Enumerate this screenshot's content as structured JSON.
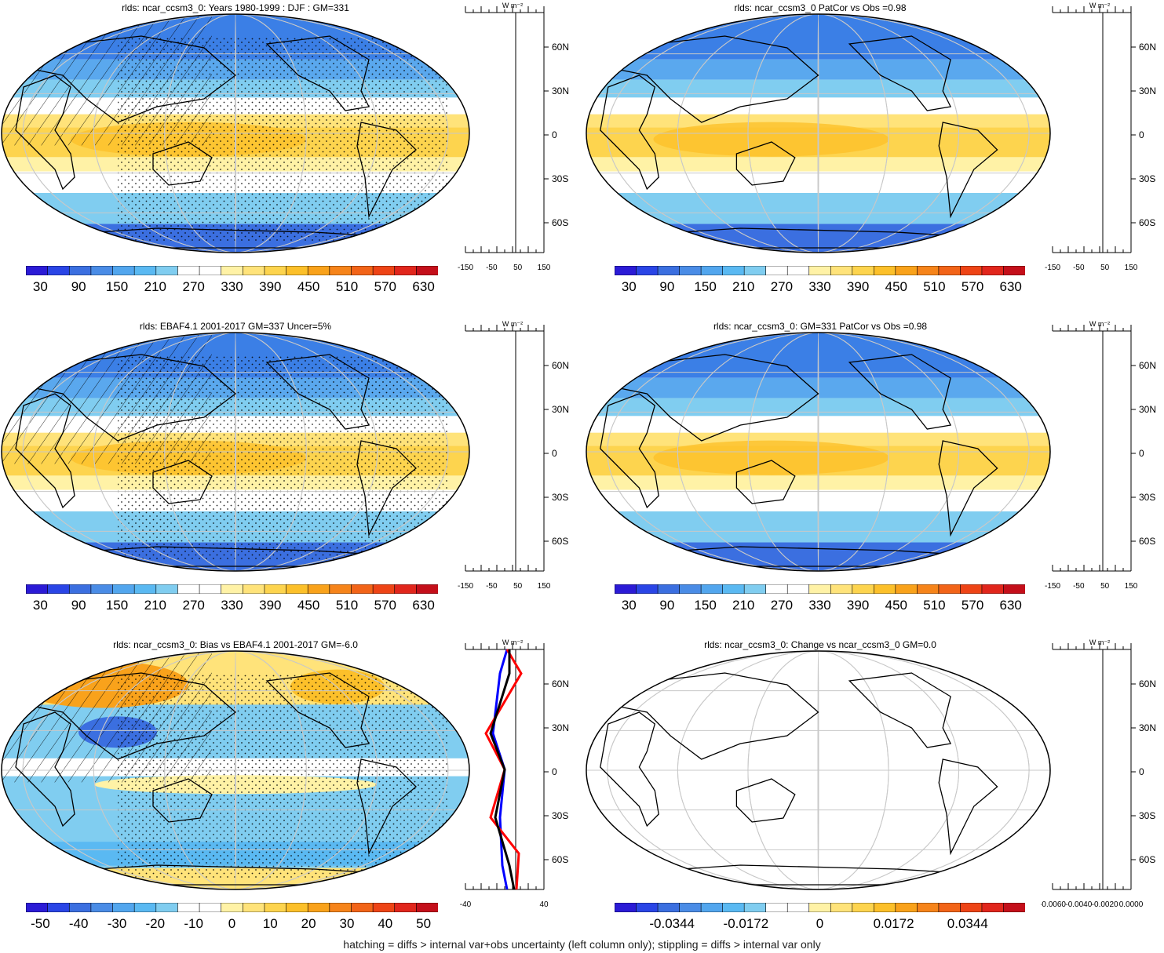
{
  "panels": [
    {
      "id": "p1",
      "title": "rlds: ncar_ccsm3_0: Years 1980-1999 : DJF : GM=331",
      "field": "full",
      "hatch": true,
      "stipple": true,
      "cbar_labels": [
        "30",
        "90",
        "150",
        "210",
        "270",
        "330",
        "390",
        "450",
        "510",
        "570",
        "630"
      ],
      "zonal_ticks": [
        "-150",
        "-50",
        "50",
        "150"
      ],
      "zonal_lines": []
    },
    {
      "id": "p2",
      "title": "rlds: ncar_ccsm3_0 PatCor vs Obs =0.98",
      "field": "full",
      "hatch": false,
      "stipple": false,
      "cbar_labels": [
        "30",
        "90",
        "150",
        "210",
        "270",
        "330",
        "390",
        "450",
        "510",
        "570",
        "630"
      ],
      "zonal_ticks": [
        "-150",
        "-50",
        "50",
        "150"
      ],
      "zonal_lines": []
    },
    {
      "id": "p3",
      "title": "rlds: EBAF4.1 2001-2017 GM=337 Uncer=5%",
      "field": "full",
      "hatch": true,
      "stipple": true,
      "cbar_labels": [
        "30",
        "90",
        "150",
        "210",
        "270",
        "330",
        "390",
        "450",
        "510",
        "570",
        "630"
      ],
      "zonal_ticks": [
        "-150",
        "-50",
        "50",
        "150"
      ],
      "zonal_lines": []
    },
    {
      "id": "p4",
      "title": "rlds: ncar_ccsm3_0: GM=331 PatCor vs Obs =0.98",
      "field": "full",
      "hatch": false,
      "stipple": false,
      "cbar_labels": [
        "30",
        "90",
        "150",
        "210",
        "270",
        "330",
        "390",
        "450",
        "510",
        "570",
        "630"
      ],
      "zonal_ticks": [
        "-150",
        "-50",
        "50",
        "150"
      ],
      "zonal_lines": []
    },
    {
      "id": "p5",
      "title": "rlds: ncar_ccsm3_0: Bias vs EBAF4.1 2001-2017 GM=-6.0",
      "field": "bias",
      "hatch": true,
      "stipple": true,
      "cbar_labels": [
        "-50",
        "-40",
        "-30",
        "-20",
        "-10",
        "0",
        "10",
        "20",
        "30",
        "40",
        "50"
      ],
      "zonal_ticks": [
        "-40",
        "40"
      ],
      "zonal_lines": [
        "#0000ff",
        "#ff0000",
        "#000000"
      ]
    },
    {
      "id": "p6",
      "title": "rlds: ncar_ccsm3_0: Change vs ncar_ccsm3_0 GM=0.0",
      "field": "zero",
      "hatch": false,
      "stipple": false,
      "cbar_labels": [
        "-0.0344",
        "-0.0172",
        "0",
        "0.0172",
        "0.0344"
      ],
      "zonal_ticks": [
        "-0.0060",
        "-0.0040",
        "-0.0020",
        "0.0000"
      ],
      "zonal_lines": []
    }
  ],
  "zonal_unit": "W m⁻²",
  "lat_labels": [
    "60N",
    "30N",
    "0",
    "30S",
    "60S"
  ],
  "colors": {
    "palette": [
      "#2b1bd6",
      "#2a45e6",
      "#3b6fe0",
      "#4a8ce6",
      "#52a6ee",
      "#5ab9f2",
      "#80cdf0",
      "#ffffff",
      "#ffffff",
      "#fff2a6",
      "#ffe37a",
      "#fdd44e",
      "#fcc02a",
      "#f9a21b",
      "#f6841a",
      "#f26418",
      "#ee4416",
      "#e1261c",
      "#c40f1a"
    ],
    "land_outline": "#000000",
    "grid": "#c8c8c8"
  },
  "footer": "hatching = diffs > internal var+obs uncertainty (left column only); stippling = diffs > internal var only"
}
